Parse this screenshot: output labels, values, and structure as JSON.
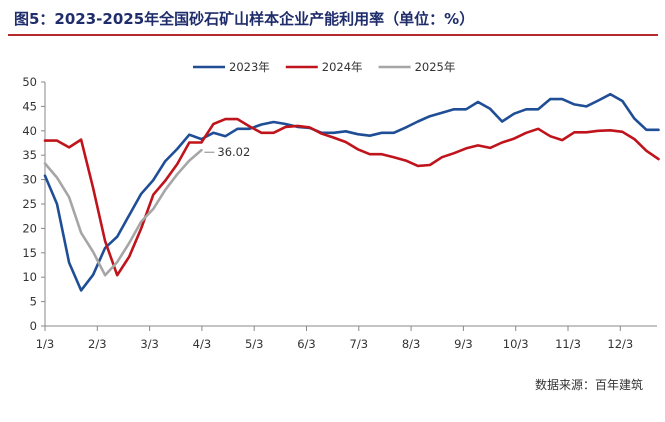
{
  "title": "图5：2023-2025年全国砂石矿山样本企业产能利用率（单位：%）",
  "source": "数据来源：百年建筑",
  "chart_data": {
    "type": "line",
    "ylim": [
      0,
      50
    ],
    "y_ticks": [
      0,
      5,
      10,
      15,
      20,
      25,
      30,
      35,
      40,
      45,
      50
    ],
    "x_ticks": [
      "1/3",
      "2/3",
      "3/3",
      "4/3",
      "5/3",
      "6/3",
      "7/3",
      "8/3",
      "9/3",
      "10/3",
      "11/3",
      "12/3"
    ],
    "x_tick_positions": [
      0,
      1,
      2,
      3,
      4,
      5,
      6,
      7,
      8,
      9,
      10,
      11
    ],
    "x_range": [
      0,
      11.8
    ],
    "grid": false,
    "legend_position": "top",
    "series": [
      {
        "name": "2023年",
        "color": "#1f4e96",
        "x": [
          0,
          0.23,
          0.46,
          0.69,
          0.92,
          1.15,
          1.38,
          1.61,
          1.84,
          2.07,
          2.3,
          2.53,
          2.76,
          2.99,
          3.22,
          3.45,
          3.68,
          3.91,
          4.14,
          4.37,
          4.6,
          4.83,
          5.06,
          5.29,
          5.52,
          5.75,
          5.98,
          6.21,
          6.44,
          6.67,
          6.9,
          7.13,
          7.36,
          7.59,
          7.82,
          8.05,
          8.28,
          8.51,
          8.74,
          8.97,
          9.2,
          9.43,
          9.66,
          9.89,
          10.12,
          10.35,
          10.58,
          10.81,
          11.04,
          11.27,
          11.5,
          11.73
        ],
        "values": [
          30.8,
          25.0,
          13.0,
          7.3,
          10.5,
          16.0,
          18.3,
          22.7,
          27.1,
          29.9,
          33.8,
          36.3,
          39.2,
          38.3,
          39.6,
          38.9,
          40.4,
          40.4,
          41.3,
          41.8,
          41.4,
          40.8,
          40.6,
          39.6,
          39.6,
          39.9,
          39.3,
          39.0,
          39.6,
          39.6,
          40.7,
          41.9,
          43.0,
          43.7,
          44.4,
          44.4,
          45.9,
          44.5,
          41.9,
          43.5,
          44.4,
          44.4,
          46.5,
          46.5,
          45.4,
          45.0,
          46.2,
          47.5,
          46.1,
          42.5,
          40.2,
          40.2
        ]
      },
      {
        "name": "2024年",
        "color": "#c0141c",
        "x": [
          0,
          0.23,
          0.46,
          0.69,
          0.92,
          1.15,
          1.38,
          1.61,
          1.84,
          2.07,
          2.3,
          2.53,
          2.76,
          2.99,
          3.22,
          3.45,
          3.68,
          3.91,
          4.14,
          4.37,
          4.6,
          4.83,
          5.06,
          5.29,
          5.52,
          5.75,
          5.98,
          6.21,
          6.44,
          6.67,
          6.9,
          7.13,
          7.36,
          7.59,
          7.82,
          8.05,
          8.28,
          8.51,
          8.74,
          8.97,
          9.2,
          9.43,
          9.66,
          9.89,
          10.12,
          10.35,
          10.58,
          10.81,
          11.04,
          11.27,
          11.5,
          11.73
        ],
        "values": [
          38.0,
          38.0,
          36.6,
          38.2,
          28.3,
          17.4,
          10.4,
          14.2,
          20.0,
          26.9,
          29.8,
          33.2,
          37.6,
          37.6,
          41.4,
          42.4,
          42.4,
          40.9,
          39.6,
          39.6,
          40.8,
          41.0,
          40.7,
          39.4,
          38.6,
          37.7,
          36.2,
          35.2,
          35.2,
          34.6,
          33.9,
          32.8,
          33.0,
          34.6,
          35.4,
          36.4,
          37.0,
          36.5,
          37.6,
          38.4,
          39.6,
          40.4,
          38.9,
          38.1,
          39.7,
          39.7,
          40.0,
          40.1,
          39.8,
          38.3,
          35.9,
          34.2
        ]
      },
      {
        "name": "2025年",
        "color": "#a6a6a6",
        "x": [
          0,
          0.23,
          0.46,
          0.69,
          0.92,
          1.15,
          1.38,
          1.61,
          1.84,
          2.07,
          2.3,
          2.53,
          2.76,
          2.99
        ],
        "values": [
          33.3,
          30.4,
          26.4,
          19.1,
          15.2,
          10.4,
          13.1,
          17.0,
          21.4,
          24.0,
          27.9,
          31.1,
          33.9,
          36.02
        ]
      }
    ],
    "annotations": [
      {
        "series": "2025年",
        "index": 13,
        "text": "36.02"
      }
    ]
  }
}
